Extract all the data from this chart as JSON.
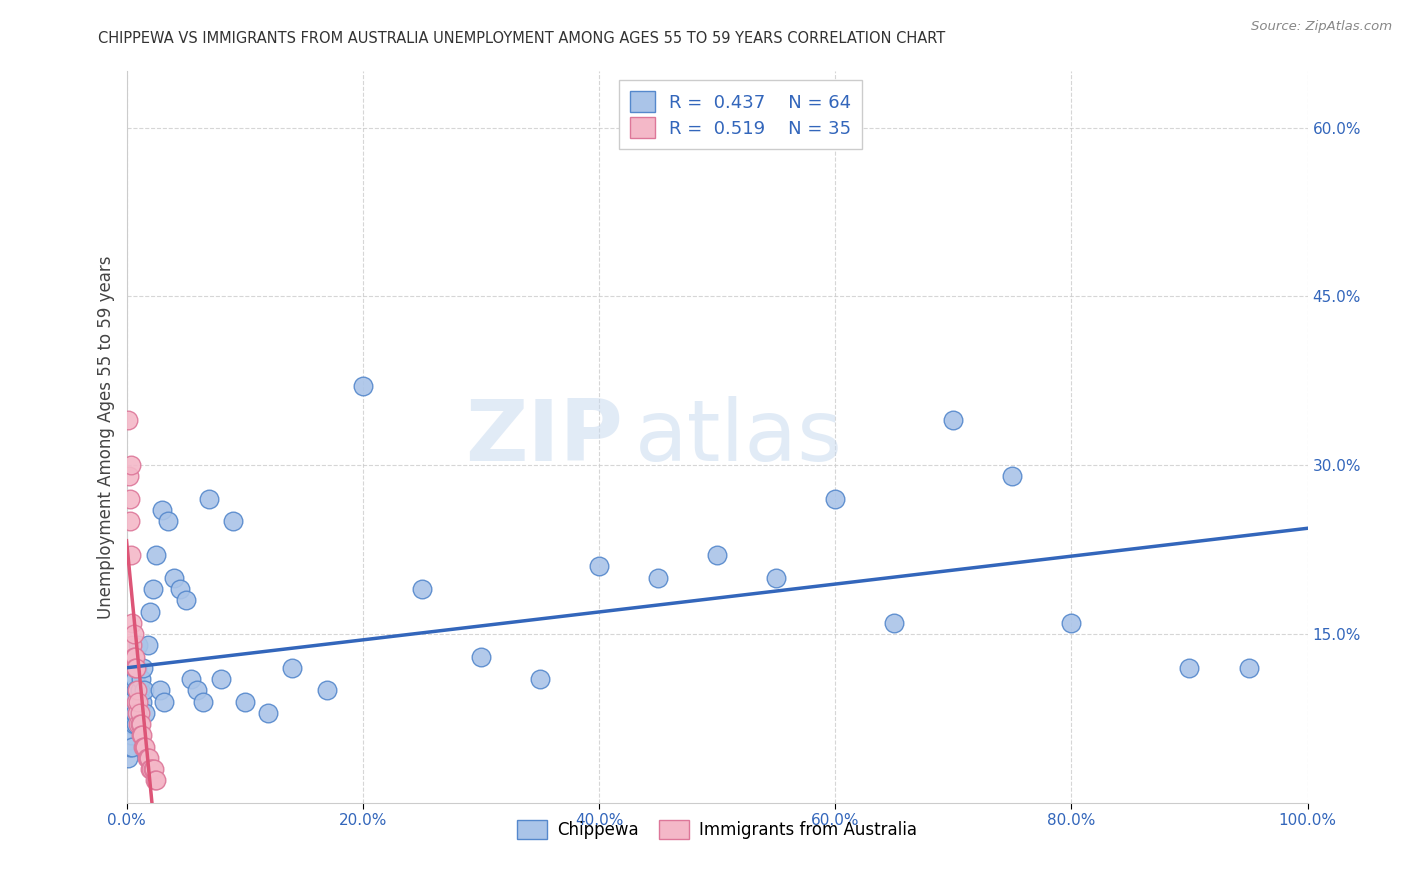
{
  "title": "CHIPPEWA VS IMMIGRANTS FROM AUSTRALIA UNEMPLOYMENT AMONG AGES 55 TO 59 YEARS CORRELATION CHART",
  "source": "Source: ZipAtlas.com",
  "ylabel": "Unemployment Among Ages 55 to 59 years",
  "ytick_labels": [
    "60.0%",
    "45.0%",
    "30.0%",
    "15.0%"
  ],
  "ytick_values": [
    0.6,
    0.45,
    0.3,
    0.15
  ],
  "xtick_labels": [
    "0.0%",
    "20.0%",
    "40.0%",
    "60.0%",
    "80.0%",
    "100.0%"
  ],
  "xtick_values": [
    0.0,
    0.2,
    0.4,
    0.6,
    0.8,
    1.0
  ],
  "xlim": [
    0.0,
    1.0
  ],
  "ylim": [
    0.0,
    0.65
  ],
  "chippewa_color": "#aac4e8",
  "chippewa_edge": "#5588cc",
  "australia_color": "#f4b8c8",
  "australia_edge": "#dd7799",
  "trend_blue": "#3366bb",
  "trend_pink": "#dd5577",
  "legend_color": "#3366bb",
  "watermark_zip_color": "#b8cce4",
  "watermark_atlas_color": "#b8cce4",
  "chippewa_x": [
    0.001,
    0.002,
    0.002,
    0.003,
    0.003,
    0.003,
    0.004,
    0.004,
    0.004,
    0.005,
    0.005,
    0.005,
    0.006,
    0.006,
    0.007,
    0.007,
    0.008,
    0.008,
    0.009,
    0.009,
    0.01,
    0.01,
    0.011,
    0.012,
    0.013,
    0.014,
    0.015,
    0.016,
    0.018,
    0.02,
    0.022,
    0.025,
    0.028,
    0.03,
    0.032,
    0.035,
    0.04,
    0.045,
    0.05,
    0.055,
    0.06,
    0.065,
    0.07,
    0.08,
    0.09,
    0.1,
    0.12,
    0.14,
    0.17,
    0.2,
    0.25,
    0.3,
    0.35,
    0.4,
    0.45,
    0.5,
    0.55,
    0.6,
    0.65,
    0.7,
    0.75,
    0.8,
    0.9,
    0.95
  ],
  "chippewa_y": [
    0.04,
    0.06,
    0.08,
    0.05,
    0.07,
    0.1,
    0.06,
    0.09,
    0.12,
    0.05,
    0.08,
    0.11,
    0.07,
    0.13,
    0.08,
    0.11,
    0.07,
    0.1,
    0.09,
    0.12,
    0.08,
    0.14,
    0.1,
    0.11,
    0.09,
    0.12,
    0.1,
    0.08,
    0.14,
    0.17,
    0.19,
    0.22,
    0.1,
    0.26,
    0.09,
    0.25,
    0.2,
    0.19,
    0.18,
    0.11,
    0.1,
    0.09,
    0.27,
    0.11,
    0.25,
    0.09,
    0.08,
    0.12,
    0.1,
    0.37,
    0.19,
    0.13,
    0.11,
    0.21,
    0.2,
    0.22,
    0.2,
    0.27,
    0.16,
    0.34,
    0.29,
    0.16,
    0.12,
    0.12
  ],
  "australia_x": [
    0.001,
    0.002,
    0.003,
    0.003,
    0.004,
    0.004,
    0.005,
    0.005,
    0.006,
    0.006,
    0.007,
    0.007,
    0.008,
    0.008,
    0.009,
    0.009,
    0.01,
    0.01,
    0.011,
    0.011,
    0.012,
    0.012,
    0.013,
    0.014,
    0.015,
    0.016,
    0.017,
    0.018,
    0.019,
    0.02,
    0.021,
    0.022,
    0.023,
    0.024,
    0.025
  ],
  "australia_y": [
    0.34,
    0.29,
    0.27,
    0.25,
    0.3,
    0.22,
    0.16,
    0.14,
    0.15,
    0.13,
    0.13,
    0.12,
    0.12,
    0.09,
    0.1,
    0.08,
    0.09,
    0.07,
    0.08,
    0.07,
    0.07,
    0.06,
    0.06,
    0.05,
    0.05,
    0.05,
    0.04,
    0.04,
    0.04,
    0.03,
    0.03,
    0.03,
    0.03,
    0.02,
    0.02
  ],
  "background_color": "#ffffff",
  "grid_color": "#cccccc"
}
